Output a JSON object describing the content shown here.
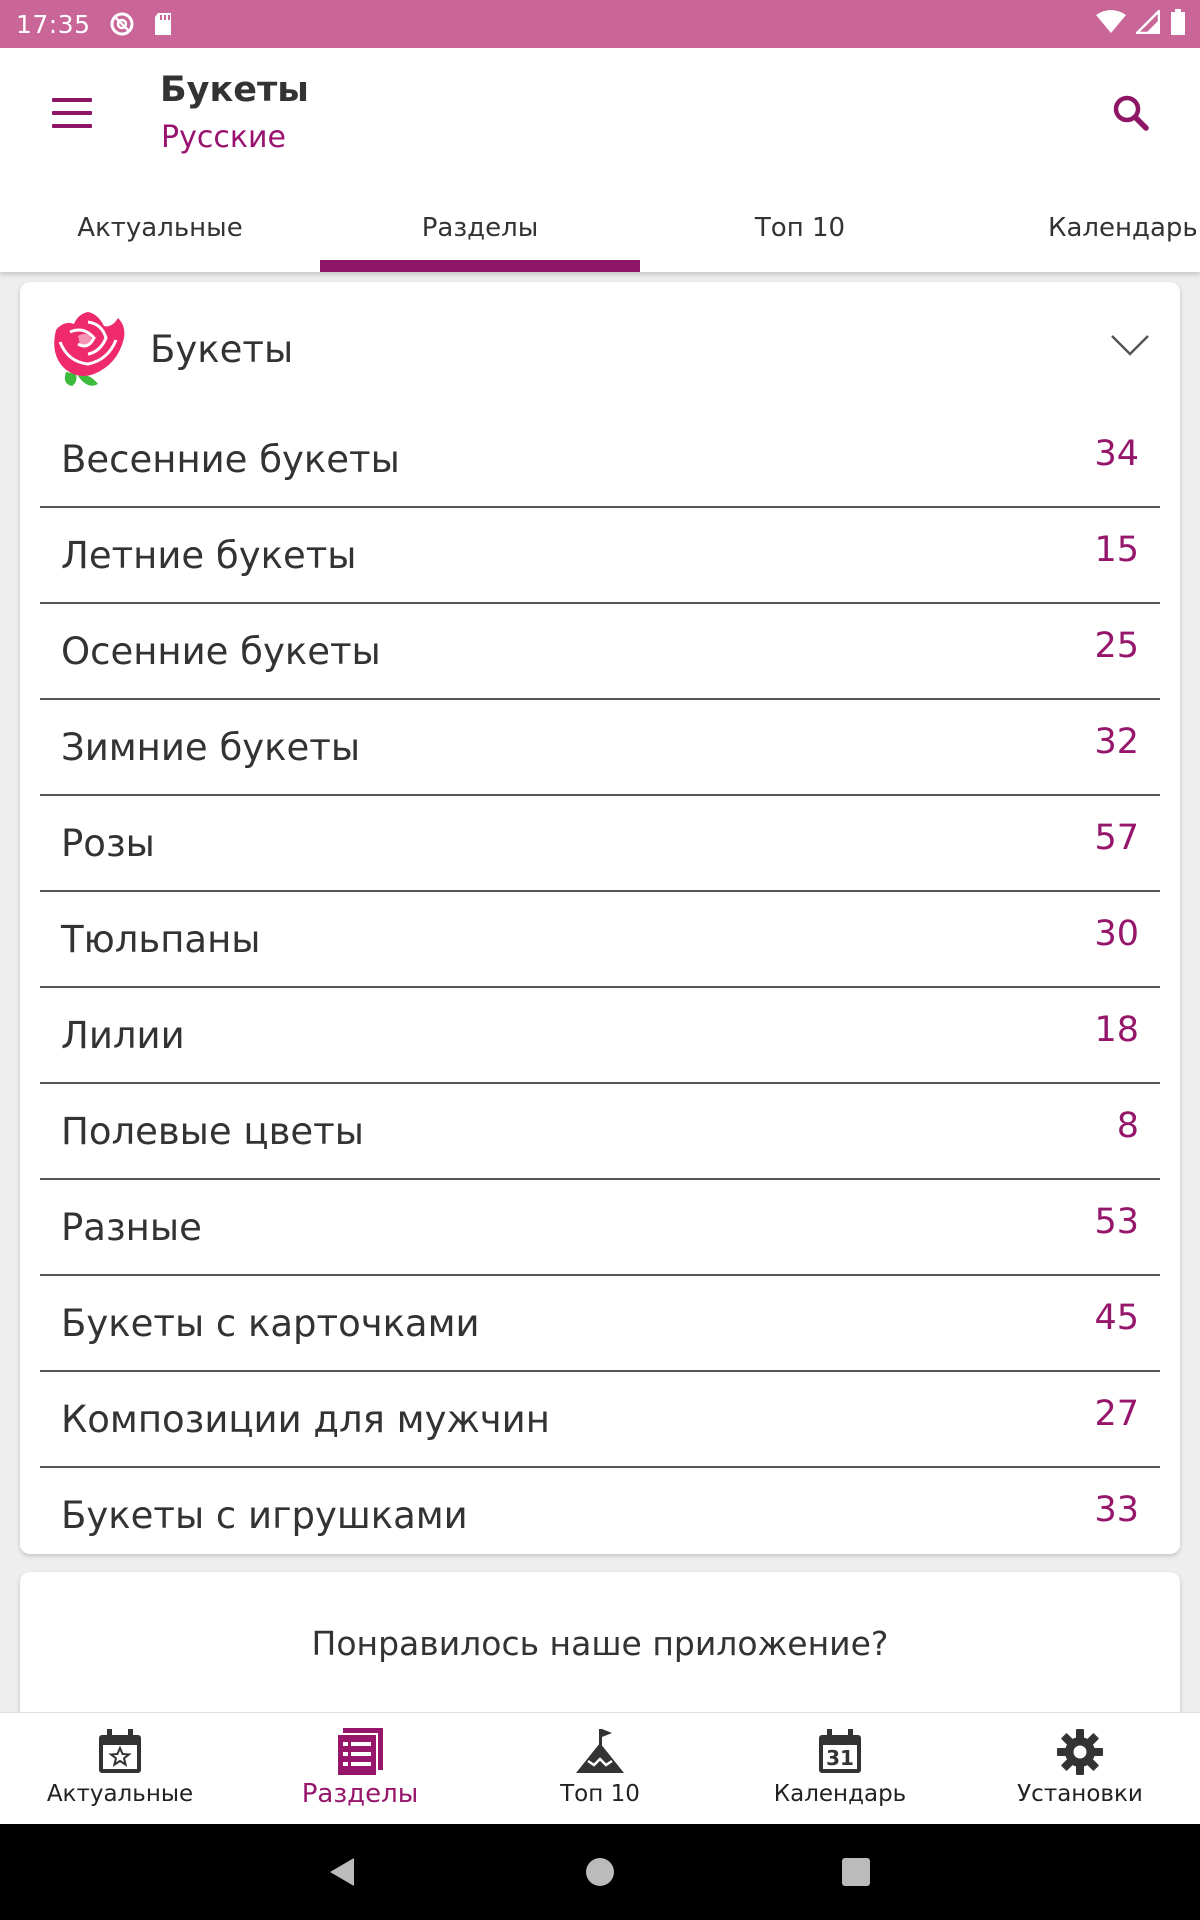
{
  "status_bar": {
    "time": "17:35"
  },
  "app_bar": {
    "title": "Букеты",
    "subtitle": "Русские"
  },
  "tabs": [
    {
      "label": "Актуальные"
    },
    {
      "label": "Разделы"
    },
    {
      "label": "Топ 10"
    },
    {
      "label": "Календарь"
    }
  ],
  "active_tab": "Разделы",
  "section": {
    "title": "Букеты",
    "items": [
      {
        "label": "Весенние букеты",
        "count": "34"
      },
      {
        "label": "Летние букеты",
        "count": "15"
      },
      {
        "label": "Осенние букеты",
        "count": "25"
      },
      {
        "label": "Зимние букеты",
        "count": "32"
      },
      {
        "label": "Розы",
        "count": "57"
      },
      {
        "label": "Тюльпаны",
        "count": "30"
      },
      {
        "label": "Лилии",
        "count": "18"
      },
      {
        "label": "Полевые цветы",
        "count": "8"
      },
      {
        "label": "Разные",
        "count": "53"
      },
      {
        "label": "Букеты с карточками",
        "count": "45"
      },
      {
        "label": "Композиции для мужчин",
        "count": "27"
      },
      {
        "label": "Букеты с игрушками",
        "count": "33"
      }
    ]
  },
  "rate_prompt": {
    "question": "Понравилось наше приложение?"
  },
  "bottom_nav": [
    {
      "label": "Актуальные",
      "icon": "calendar-star-icon"
    },
    {
      "label": "Разделы",
      "icon": "list-icon"
    },
    {
      "label": "Топ 10",
      "icon": "mountain-flag-icon"
    },
    {
      "label": "Календарь",
      "icon": "calendar-31-icon"
    },
    {
      "label": "Установки",
      "icon": "gear-icon"
    }
  ],
  "bottom_nav_active": "Разделы",
  "calendar_icon_day": "31",
  "colors": {
    "status_bar": "#c96597",
    "accent": "#8e1566",
    "count_text": "#96166b"
  }
}
